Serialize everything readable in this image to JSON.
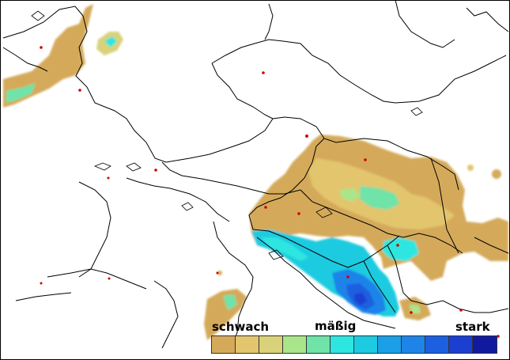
{
  "legend": {
    "label_weak": "schwach",
    "label_moderate": "mäßig",
    "label_strong": "stark",
    "colors": [
      "#d4aa5a",
      "#e3c56e",
      "#d9d27a",
      "#a9e58a",
      "#6fe3a8",
      "#2ee6e0",
      "#1ccbe0",
      "#1b9fe6",
      "#1f84e8",
      "#1c5fe0",
      "#1b3fd0",
      "#111a9e"
    ]
  },
  "map": {
    "background": "#ffffff",
    "border_color": "#000000",
    "city_color": "#d00000"
  }
}
